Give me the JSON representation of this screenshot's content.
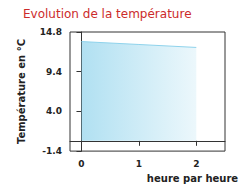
{
  "chart_data": {
    "type": "area",
    "title": "Evolution de la température",
    "x_label": "heure par heure",
    "y_label": "Température en °C",
    "x": [
      0,
      1,
      2
    ],
    "values": [
      13.5,
      13.1,
      12.7
    ],
    "color": "#8fd3ec",
    "xlim": [
      -0.2,
      2.5
    ],
    "xticks": [
      0,
      1,
      2
    ],
    "ylim": [
      -1.4,
      14.8
    ],
    "yticks": [
      -1.4,
      {
        "value": 4,
        "label": "4.0"
      },
      9.4,
      14.8
    ],
    "grid": false
  }
}
